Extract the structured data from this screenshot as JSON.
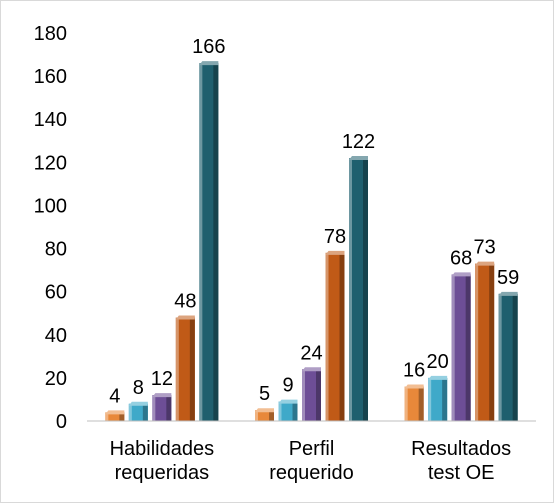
{
  "chart_data": {
    "type": "bar",
    "categories": [
      [
        "Habilidades",
        "requeridas"
      ],
      [
        "Perfil",
        "requerido"
      ],
      [
        "Resultados",
        "test OE"
      ]
    ],
    "series": [
      {
        "values": [
          4,
          5,
          16
        ],
        "color": "#e8883a"
      },
      {
        "values": [
          8,
          9,
          20
        ],
        "color": "#3fa9c9"
      },
      {
        "values": [
          12,
          24,
          68
        ],
        "color": "#6d4e96"
      },
      {
        "values": [
          48,
          78,
          73
        ],
        "color": "#c05a17"
      },
      {
        "values": [
          166,
          122,
          59
        ],
        "color": "#1f5f6e"
      }
    ],
    "ylim": [
      0,
      180
    ],
    "yticks": [
      0,
      20,
      40,
      60,
      80,
      100,
      120,
      140,
      160,
      180
    ],
    "grid": false,
    "legend": "none",
    "title": "",
    "xlabel": "",
    "ylabel": ""
  }
}
